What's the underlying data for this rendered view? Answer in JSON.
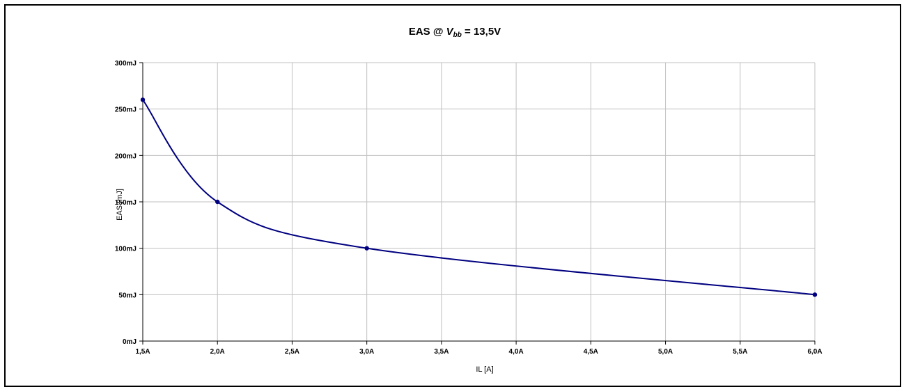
{
  "chart_data": {
    "type": "line",
    "title": "EAS @ V bb = 13,5V",
    "title_parts": {
      "prefix": "EAS @ ",
      "symbol": "V",
      "subscript": "bb",
      "suffix": " = 13,5V"
    },
    "xlabel": "IL [A]",
    "ylabel": "EAS [mJ]",
    "xlim": [
      1.5,
      6.0
    ],
    "ylim": [
      0,
      300
    ],
    "x_ticks": [
      1.5,
      2.0,
      2.5,
      3.0,
      3.5,
      4.0,
      4.5,
      5.0,
      5.5,
      6.0
    ],
    "x_tick_labels": [
      "1,5A",
      "2,0A",
      "2,5A",
      "3,0A",
      "3,5A",
      "4,0A",
      "4,5A",
      "5,0A",
      "5,5A",
      "6,0A"
    ],
    "y_ticks": [
      0,
      50,
      100,
      150,
      200,
      250,
      300
    ],
    "y_tick_labels": [
      "0mJ",
      "50mJ",
      "100mJ",
      "150mJ",
      "200mJ",
      "250mJ",
      "300mJ"
    ],
    "grid": true,
    "legend": "none",
    "series": [
      {
        "x": [
          1.5,
          2.0,
          3.0,
          6.0
        ],
        "y": [
          260,
          150,
          100,
          50
        ],
        "color": "#000080",
        "marker": "circle",
        "smooth": true
      }
    ],
    "colors": {
      "line": "#000080",
      "grid": "#c0c0c0",
      "axis": "#000000",
      "background": "#ffffff"
    }
  }
}
